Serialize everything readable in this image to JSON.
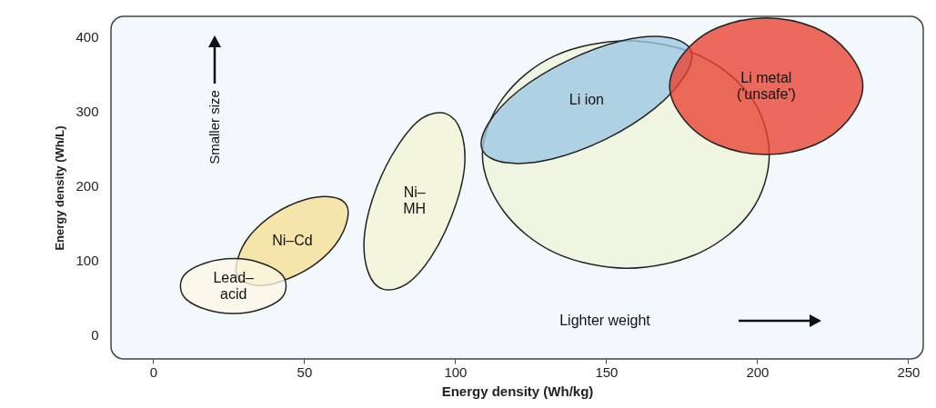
{
  "chart_data": {
    "type": "area",
    "xlabel": "Energy density (Wh/kg)",
    "ylabel": "Energy density (Wh/L)",
    "xlim": [
      -14,
      255
    ],
    "ylim": [
      -33,
      428
    ],
    "xticks": [
      0,
      50,
      100,
      150,
      200,
      250
    ],
    "yticks": [
      0,
      100,
      200,
      300,
      400
    ],
    "grid": false,
    "marker": "none",
    "line_style": "solid",
    "annotations": [
      "Smaller size",
      "Lighter weight"
    ],
    "series": [
      {
        "name": "Ni–Cd",
        "color": "#f6df93",
        "x": [
          64,
          64,
          60,
          52,
          42,
          34,
          28,
          28,
          32,
          40,
          50,
          59
        ],
        "values": [
          174,
          150,
          119,
          90,
          71,
          66,
          78,
          102,
          133,
          162,
          181,
          185
        ]
      },
      {
        "name": "Lead–\nacid",
        "color": "#fbf7e4",
        "x": [
          44,
          42,
          35,
          27,
          18,
          11,
          9,
          11,
          18,
          27,
          35,
          42
        ],
        "values": [
          65,
          83,
          97,
          102,
          97,
          83,
          65,
          47,
          33,
          28,
          33,
          47
        ]
      },
      {
        "name": "Ni–\nMH",
        "color": "#f4f4d4",
        "x": [
          97,
          102,
          103,
          99,
          92,
          84,
          76,
          71,
          70,
          74,
          81,
          89
        ],
        "values": [
          297,
          272,
          222,
          161,
          104,
          68,
          61,
          86,
          136,
          198,
          254,
          291
        ]
      },
      {
        "color": "#eef3d8",
        "x": [
          204,
          198,
          181,
          157,
          133,
          116,
          109,
          116,
          133,
          157,
          181,
          198
        ],
        "values": [
          242,
          319,
          375,
          395,
          375,
          319,
          242,
          166,
          110,
          89,
          110,
          166
        ]
      },
      {
        "name": "Li ion",
        "color": "#9cc6e4",
        "x": [
          178,
          176,
          166,
          150,
          132,
          117,
          109,
          111,
          121,
          137,
          155,
          170
        ],
        "values": [
          383,
          348,
          304,
          263,
          236,
          231,
          248,
          284,
          328,
          368,
          395,
          400
        ]
      },
      {
        "name": "Li metal\n('unsafe')",
        "color": "#e8402f",
        "x": [
          235,
          230,
          219,
          203,
          187,
          176,
          171,
          176,
          187,
          203,
          219,
          230
        ],
        "values": [
          334,
          380,
          413,
          426,
          413,
          380,
          334,
          288,
          255,
          242,
          255,
          288
        ]
      }
    ]
  }
}
